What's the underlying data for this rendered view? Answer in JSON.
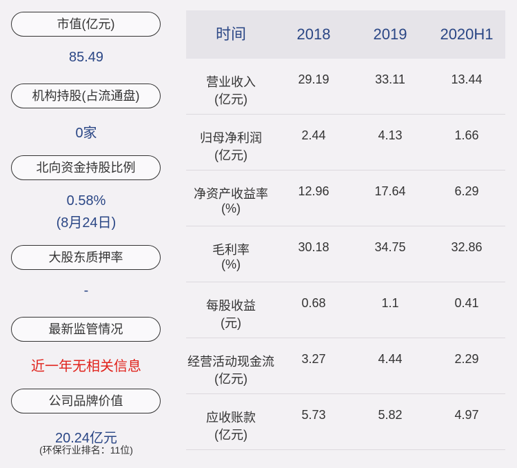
{
  "left_panel": {
    "items": [
      {
        "label": "市值(亿元)",
        "value": "85.49"
      },
      {
        "label": "机构持股(占流通盘)",
        "value": "0家"
      },
      {
        "label": "北向资金持股比例",
        "value": "0.58%",
        "note": "(8月24日)"
      },
      {
        "label": "大股东质押率",
        "value": "-"
      },
      {
        "label": "最新监管情况",
        "value": "近一年无相关信息",
        "alert": true
      },
      {
        "label": "公司品牌价值",
        "value": "20.24亿元",
        "note": "(环保行业排名：11位)"
      }
    ]
  },
  "table": {
    "header": [
      "时间",
      "2018",
      "2019",
      "2020H1"
    ],
    "rows": [
      {
        "label": "营业收入",
        "unit": "(亿元)",
        "values": [
          29.19,
          33.11,
          13.44
        ]
      },
      {
        "label": "归母净利润",
        "unit": "(亿元)",
        "values": [
          2.44,
          4.13,
          1.66
        ]
      },
      {
        "label": "净资产收益率",
        "unit": "(%)",
        "values": [
          12.96,
          17.64,
          6.29
        ]
      },
      {
        "label": "毛利率",
        "unit": "(%)",
        "values": [
          30.18,
          34.75,
          32.86
        ]
      },
      {
        "label": "每股收益",
        "unit": "(元)",
        "values": [
          0.68,
          1.1,
          0.41
        ]
      },
      {
        "label": "经营活动现金流",
        "unit": "(亿元)",
        "values": [
          3.27,
          4.44,
          2.29
        ]
      },
      {
        "label": "应收账款",
        "unit": "(亿元)",
        "values": [
          5.73,
          5.82,
          4.97
        ]
      }
    ]
  }
}
